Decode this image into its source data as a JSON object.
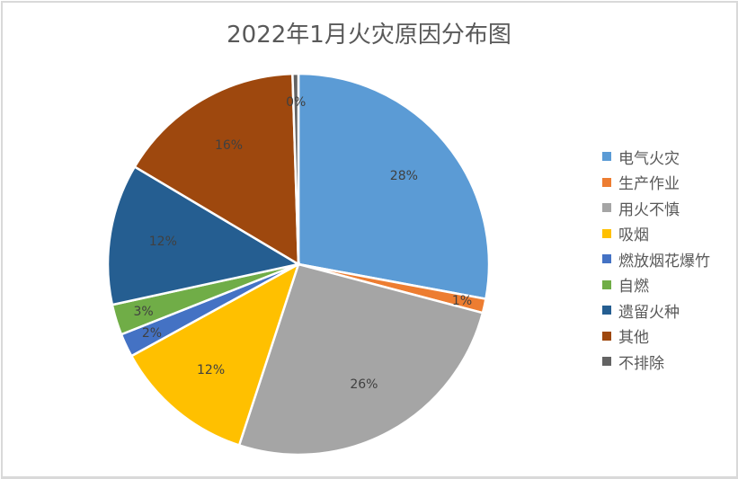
{
  "chart_data": {
    "type": "pie",
    "title": "2022年1月火灾原因分布图",
    "categories": [
      "电气火灾",
      "生产作业",
      "用火不慎",
      "吸烟",
      "燃放烟花爆竹",
      "自燃",
      "遗留火种",
      "其他",
      "不排除"
    ],
    "values": [
      28,
      1,
      26,
      12,
      2,
      3,
      12,
      16,
      0
    ],
    "plot_values": [
      28,
      1.2,
      26,
      12,
      2,
      2.6,
      12,
      16,
      0.5
    ],
    "labels": [
      "28%",
      "1%",
      "26%",
      "12%",
      "2%",
      "3%",
      "12%",
      "16%",
      "0%"
    ],
    "colors": [
      "#5B9BD5",
      "#ED7D31",
      "#A5A5A5",
      "#FFC000",
      "#4472C4",
      "#70AD47",
      "#255E91",
      "#9E480E",
      "#636363"
    ],
    "legend_position": "right",
    "start_angle_deg": 0,
    "direction": "clockwise"
  }
}
